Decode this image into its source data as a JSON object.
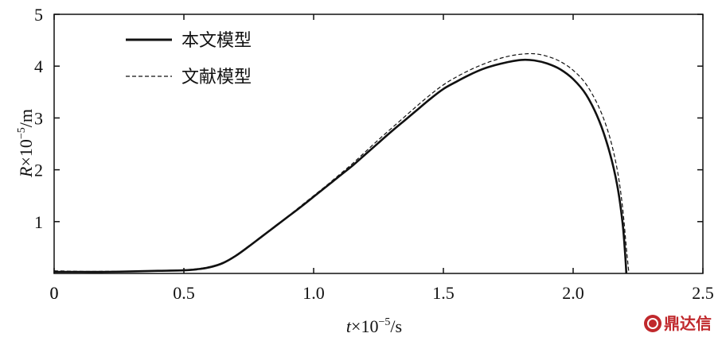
{
  "chart_data": {
    "type": "line",
    "xlabel_var": "t",
    "xlabel_rest": "×10",
    "xlabel_exp": "−5",
    "xlabel_unit": "/s",
    "ylabel_var": "R",
    "ylabel_rest": "×10",
    "ylabel_exp": "−5",
    "ylabel_unit": "/m",
    "xlim": [
      0,
      2.5
    ],
    "ylim": [
      0,
      5
    ],
    "xticks": [
      0,
      0.5,
      1.0,
      1.5,
      2.0,
      2.5
    ],
    "xtick_labels": [
      "0",
      "0.5",
      "1.0",
      "1.5",
      "2.0",
      "2.5"
    ],
    "yticks": [
      1,
      2,
      3,
      4,
      5
    ],
    "ytick_labels": [
      "1",
      "2",
      "3",
      "4",
      "5"
    ],
    "ytick_zero_label": "0",
    "grid": false,
    "legend_position": "top-left",
    "series": [
      {
        "name": "本文模型",
        "style": "solid",
        "x": [
          0,
          0.1,
          0.2,
          0.3,
          0.4,
          0.5,
          0.55,
          0.6,
          0.65,
          0.7,
          0.75,
          0.8,
          0.85,
          0.9,
          0.95,
          1.0,
          1.05,
          1.1,
          1.15,
          1.2,
          1.25,
          1.3,
          1.35,
          1.4,
          1.45,
          1.5,
          1.55,
          1.6,
          1.65,
          1.7,
          1.75,
          1.8,
          1.85,
          1.9,
          1.95,
          2.0,
          2.05,
          2.1,
          2.14,
          2.17,
          2.19,
          2.2,
          2.205
        ],
        "y": [
          0.03,
          0.03,
          0.03,
          0.04,
          0.05,
          0.06,
          0.08,
          0.12,
          0.2,
          0.34,
          0.52,
          0.71,
          0.9,
          1.09,
          1.28,
          1.48,
          1.68,
          1.88,
          2.08,
          2.3,
          2.52,
          2.74,
          2.95,
          3.16,
          3.37,
          3.56,
          3.7,
          3.83,
          3.94,
          4.02,
          4.08,
          4.12,
          4.11,
          4.05,
          3.94,
          3.75,
          3.45,
          2.95,
          2.35,
          1.7,
          1.0,
          0.4,
          0.0
        ]
      },
      {
        "name": "文献模型",
        "style": "dashed",
        "x": [
          0,
          0.1,
          0.2,
          0.3,
          0.4,
          0.5,
          0.55,
          0.6,
          0.65,
          0.7,
          0.75,
          0.8,
          0.85,
          0.9,
          0.95,
          1.0,
          1.05,
          1.1,
          1.15,
          1.2,
          1.25,
          1.3,
          1.35,
          1.4,
          1.45,
          1.5,
          1.55,
          1.6,
          1.65,
          1.7,
          1.75,
          1.8,
          1.85,
          1.9,
          1.95,
          2.0,
          2.05,
          2.1,
          2.14,
          2.17,
          2.19,
          2.205,
          2.215
        ],
        "y": [
          0.05,
          0.04,
          0.04,
          0.04,
          0.05,
          0.07,
          0.09,
          0.13,
          0.21,
          0.35,
          0.53,
          0.72,
          0.91,
          1.1,
          1.3,
          1.5,
          1.7,
          1.91,
          2.12,
          2.35,
          2.58,
          2.8,
          3.02,
          3.24,
          3.45,
          3.64,
          3.79,
          3.92,
          4.03,
          4.12,
          4.19,
          4.23,
          4.24,
          4.19,
          4.09,
          3.92,
          3.65,
          3.2,
          2.65,
          2.0,
          1.3,
          0.5,
          0.0
        ]
      }
    ]
  },
  "watermark": {
    "text": "鼎达信",
    "color": "#c0282c"
  }
}
